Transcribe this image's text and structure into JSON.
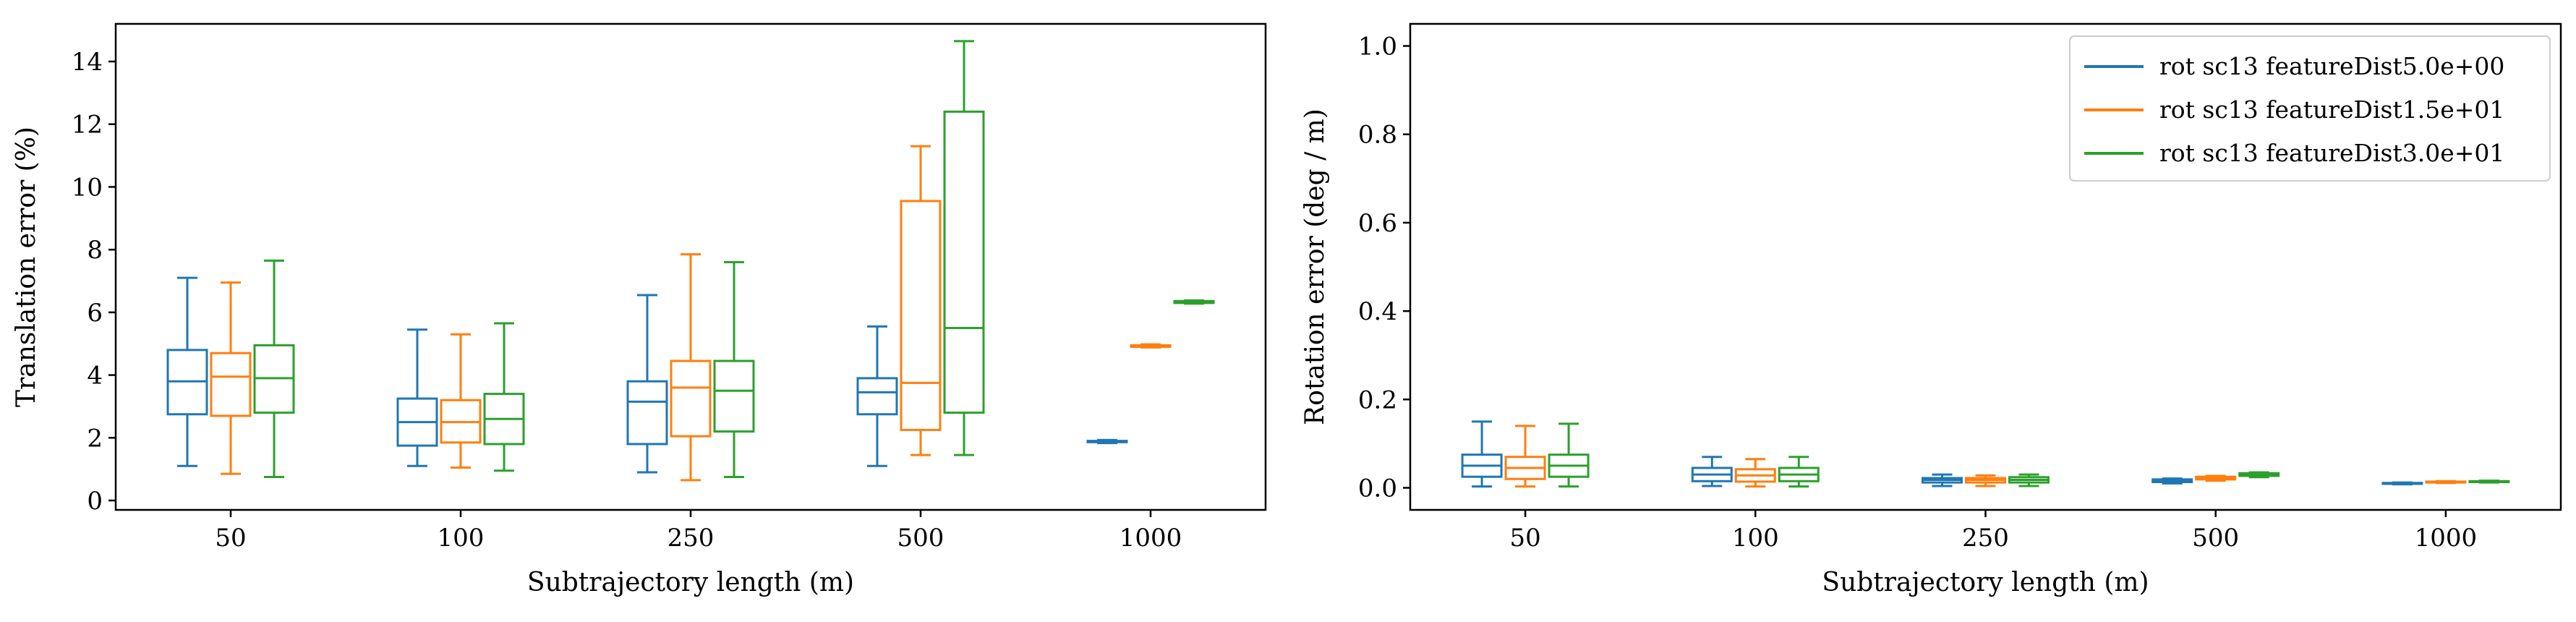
{
  "colors": {
    "series": [
      "#1f77b4",
      "#ff7f0e",
      "#2ca02c"
    ],
    "axis": "#000000",
    "legend_border": "#cccccc"
  },
  "legend": {
    "placement": "top-right",
    "entries": [
      "rot sc13 featureDist5.0e+00",
      "rot sc13 featureDist1.5e+01",
      "rot sc13 featureDist3.0e+01"
    ]
  },
  "chart_data": [
    {
      "type": "box",
      "xlabel": "Subtrajectory length (m)",
      "ylabel": "Translation error (%)",
      "ylim": [
        -0.3,
        15.2
      ],
      "yticks": [
        0,
        2,
        4,
        6,
        8,
        10,
        12,
        14
      ],
      "categories": [
        "50",
        "100",
        "250",
        "500",
        "1000"
      ],
      "series": [
        {
          "name": "rot sc13 featureDist5.0e+00",
          "boxes": [
            {
              "whislo": 1.1,
              "q1": 2.75,
              "med": 3.8,
              "q3": 4.8,
              "whishi": 7.1
            },
            {
              "whislo": 1.1,
              "q1": 1.75,
              "med": 2.5,
              "q3": 3.25,
              "whishi": 5.45
            },
            {
              "whislo": 0.9,
              "q1": 1.8,
              "med": 3.15,
              "q3": 3.8,
              "whishi": 6.55
            },
            {
              "whislo": 1.1,
              "q1": 2.75,
              "med": 3.45,
              "q3": 3.9,
              "whishi": 5.55
            },
            {
              "whislo": 1.83,
              "q1": 1.86,
              "med": 1.88,
              "q3": 1.9,
              "whishi": 1.93
            }
          ]
        },
        {
          "name": "rot sc13 featureDist1.5e+01",
          "boxes": [
            {
              "whislo": 0.85,
              "q1": 2.7,
              "med": 3.95,
              "q3": 4.7,
              "whishi": 6.95
            },
            {
              "whislo": 1.05,
              "q1": 1.85,
              "med": 2.5,
              "q3": 3.2,
              "whishi": 5.3
            },
            {
              "whislo": 0.65,
              "q1": 2.05,
              "med": 3.6,
              "q3": 4.45,
              "whishi": 7.85
            },
            {
              "whislo": 1.45,
              "q1": 2.25,
              "med": 3.75,
              "q3": 9.55,
              "whishi": 11.3
            },
            {
              "whislo": 4.88,
              "q1": 4.9,
              "med": 4.93,
              "q3": 4.95,
              "whishi": 4.98
            }
          ]
        },
        {
          "name": "rot sc13 featureDist3.0e+01",
          "boxes": [
            {
              "whislo": 0.75,
              "q1": 2.8,
              "med": 3.9,
              "q3": 4.95,
              "whishi": 7.65
            },
            {
              "whislo": 0.95,
              "q1": 1.8,
              "med": 2.6,
              "q3": 3.4,
              "whishi": 5.65
            },
            {
              "whislo": 0.75,
              "q1": 2.2,
              "med": 3.5,
              "q3": 4.45,
              "whishi": 7.6
            },
            {
              "whislo": 1.45,
              "q1": 2.8,
              "med": 5.5,
              "q3": 12.4,
              "whishi": 14.65
            },
            {
              "whislo": 6.28,
              "q1": 6.3,
              "med": 6.33,
              "q3": 6.36,
              "whishi": 6.38
            }
          ]
        }
      ]
    },
    {
      "type": "box",
      "xlabel": "Subtrajectory length (m)",
      "ylabel": "Rotation error (deg / m)",
      "ylim": [
        -0.05,
        1.05
      ],
      "yticks": [
        0.0,
        0.2,
        0.4,
        0.6,
        0.8,
        1.0
      ],
      "ytick_labels": [
        "0.0",
        "0.2",
        "0.4",
        "0.6",
        "0.8",
        "1.0"
      ],
      "categories": [
        "50",
        "100",
        "250",
        "500",
        "1000"
      ],
      "series": [
        {
          "name": "rot sc13 featureDist5.0e+00",
          "boxes": [
            {
              "whislo": 0.003,
              "q1": 0.025,
              "med": 0.05,
              "q3": 0.075,
              "whishi": 0.15
            },
            {
              "whislo": 0.004,
              "q1": 0.015,
              "med": 0.03,
              "q3": 0.045,
              "whishi": 0.07
            },
            {
              "whislo": 0.004,
              "q1": 0.012,
              "med": 0.018,
              "q3": 0.022,
              "whishi": 0.03
            },
            {
              "whislo": 0.01,
              "q1": 0.013,
              "med": 0.016,
              "q3": 0.019,
              "whishi": 0.021
            },
            {
              "whislo": 0.008,
              "q1": 0.009,
              "med": 0.01,
              "q3": 0.011,
              "whishi": 0.012
            }
          ]
        },
        {
          "name": "rot sc13 featureDist1.5e+01",
          "boxes": [
            {
              "whislo": 0.003,
              "q1": 0.02,
              "med": 0.045,
              "q3": 0.07,
              "whishi": 0.14
            },
            {
              "whislo": 0.003,
              "q1": 0.014,
              "med": 0.028,
              "q3": 0.042,
              "whishi": 0.065
            },
            {
              "whislo": 0.004,
              "q1": 0.012,
              "med": 0.018,
              "q3": 0.022,
              "whishi": 0.028
            },
            {
              "whislo": 0.016,
              "q1": 0.019,
              "med": 0.022,
              "q3": 0.025,
              "whishi": 0.027
            },
            {
              "whislo": 0.011,
              "q1": 0.012,
              "med": 0.013,
              "q3": 0.014,
              "whishi": 0.015
            }
          ]
        },
        {
          "name": "rot sc13 featureDist3.0e+01",
          "boxes": [
            {
              "whislo": 0.003,
              "q1": 0.025,
              "med": 0.05,
              "q3": 0.075,
              "whishi": 0.145
            },
            {
              "whislo": 0.003,
              "q1": 0.015,
              "med": 0.03,
              "q3": 0.045,
              "whishi": 0.07
            },
            {
              "whislo": 0.004,
              "q1": 0.012,
              "med": 0.018,
              "q3": 0.024,
              "whishi": 0.03
            },
            {
              "whislo": 0.024,
              "q1": 0.027,
              "med": 0.03,
              "q3": 0.033,
              "whishi": 0.035
            },
            {
              "whislo": 0.012,
              "q1": 0.013,
              "med": 0.014,
              "q3": 0.015,
              "whishi": 0.016
            }
          ]
        }
      ]
    }
  ]
}
